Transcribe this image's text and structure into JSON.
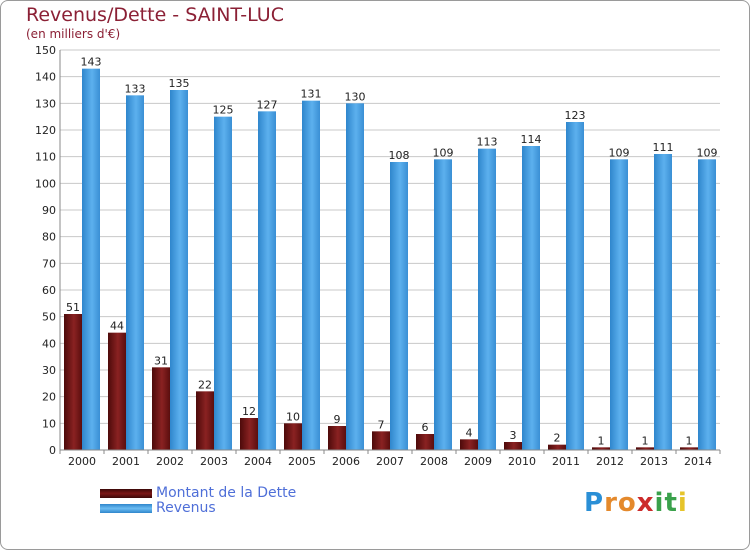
{
  "header": {
    "title": "Revenus/Dette - SAINT-LUC",
    "subtitle": "(en milliers d'€)"
  },
  "logo": {
    "text": "Proxiti",
    "letters": [
      {
        "ch": "P",
        "color": "#2a8fd6"
      },
      {
        "ch": "r",
        "color": "#e4892c"
      },
      {
        "ch": "o",
        "color": "#e4892c"
      },
      {
        "ch": "x",
        "color": "#cc2b2b"
      },
      {
        "ch": "i",
        "color": "#3aa14b"
      },
      {
        "ch": "t",
        "color": "#3aa14b"
      },
      {
        "ch": "i",
        "color": "#e6c42a"
      }
    ]
  },
  "chart_data": {
    "type": "bar",
    "title": "Revenus/Dette - SAINT-LUC",
    "subtitle": "(en milliers d'€)",
    "categories": [
      "2000",
      "2001",
      "2002",
      "2003",
      "2004",
      "2005",
      "2006",
      "2007",
      "2008",
      "2009",
      "2010",
      "2011",
      "2012",
      "2013",
      "2014"
    ],
    "series": [
      {
        "name": "Montant de la Dette",
        "color": "#7a1616",
        "values": [
          51,
          44,
          31,
          22,
          12,
          10,
          9,
          7,
          6,
          4,
          3,
          2,
          1,
          1,
          1
        ]
      },
      {
        "name": "Revenus",
        "color": "#4aa3e6",
        "values": [
          143,
          133,
          135,
          125,
          127,
          131,
          130,
          108,
          109,
          113,
          114,
          123,
          109,
          111,
          109
        ]
      }
    ],
    "ylim": [
      0,
      150
    ],
    "yticks": [
      0,
      10,
      20,
      30,
      40,
      50,
      60,
      70,
      80,
      90,
      100,
      110,
      120,
      130,
      140,
      150
    ],
    "grid": true,
    "legend_position": "bottom-left"
  }
}
